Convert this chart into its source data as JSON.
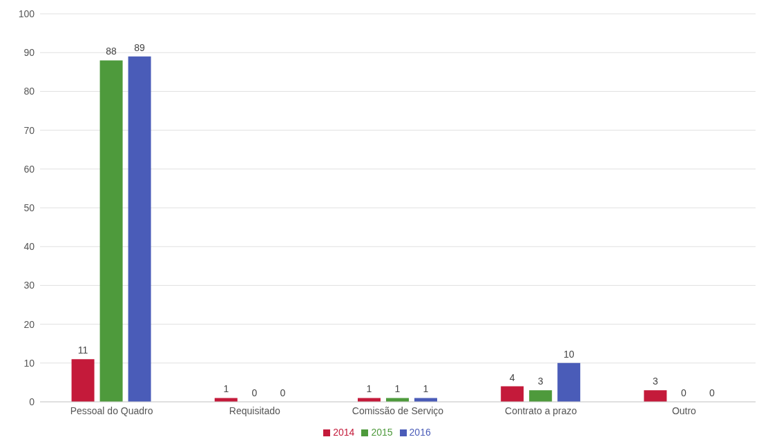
{
  "chart_data": {
    "type": "bar",
    "categories": [
      "Pessoal do Quadro",
      "Requisitado",
      "Comissão de Serviço",
      "Contrato a prazo",
      "Outro"
    ],
    "series": [
      {
        "name": "2014",
        "color": "#c41a3a",
        "values": [
          11,
          1,
          1,
          4,
          3
        ]
      },
      {
        "name": "2015",
        "color": "#4e9a3c",
        "values": [
          88,
          0,
          1,
          3,
          0
        ]
      },
      {
        "name": "2016",
        "color": "#4a5cb8",
        "values": [
          89,
          0,
          1,
          10,
          0
        ]
      }
    ],
    "ylim": [
      0,
      100
    ],
    "yticks": [
      0,
      10,
      20,
      30,
      40,
      50,
      60,
      70,
      80,
      90,
      100
    ],
    "grid": "y",
    "legend": "bottom",
    "data_labels": true
  }
}
